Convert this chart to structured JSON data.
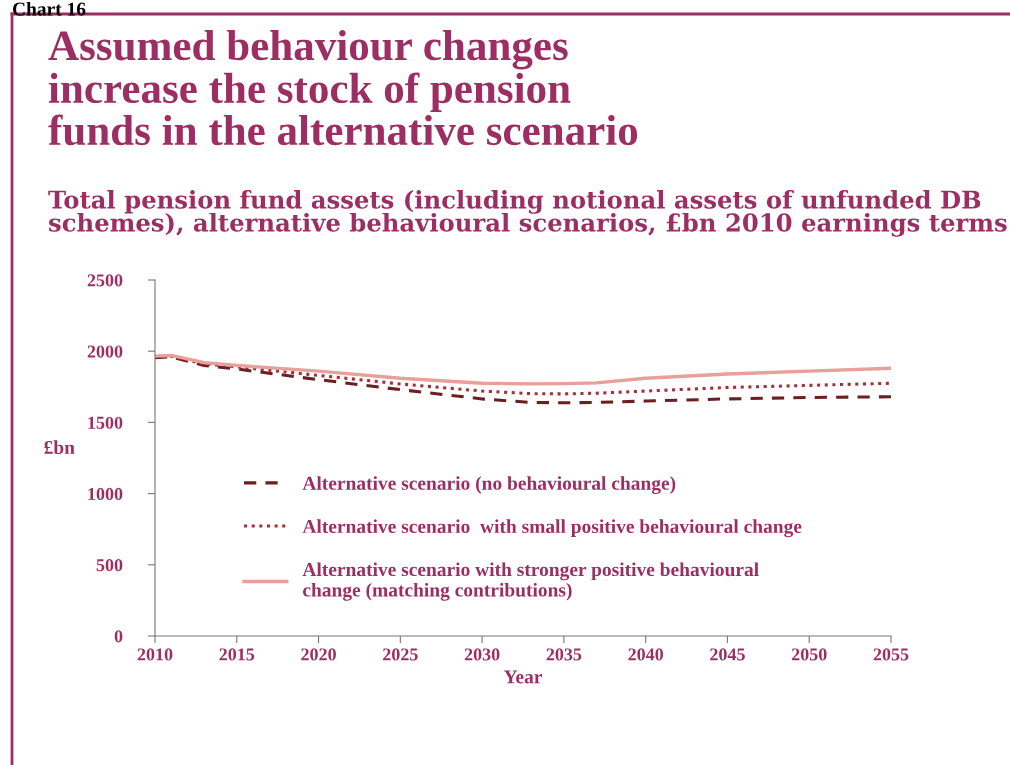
{
  "chart_data": {
    "type": "line",
    "title": "Assumed behaviour changes\nincrease the stock of pension\nfunds in the alternative scenario",
    "subtitle": "Total pension fund assets (including notional assets of unfunded DB\nschemes), alternative behavioural scenarios, £bn 2010 earnings terms",
    "annotations": [
      "Chart 16"
    ],
    "xlabel": "Year",
    "ylabel": "£bn",
    "x": [
      2010,
      2011,
      2013,
      2015,
      2020,
      2025,
      2030,
      2033,
      2035,
      2037,
      2040,
      2045,
      2050,
      2055
    ],
    "series": [
      {
        "name": "Alternative scenario (no behavioural change)",
        "color": "#6b1f1f",
        "line_style": "dashed",
        "values": [
          1955,
          1960,
          1900,
          1875,
          1800,
          1730,
          1665,
          1640,
          1638,
          1640,
          1650,
          1665,
          1675,
          1680
        ]
      },
      {
        "name": "Alternative scenario  with small positive behavioural change",
        "color": "#a0303a",
        "line_style": "dotted",
        "values": [
          1960,
          1965,
          1910,
          1890,
          1830,
          1770,
          1720,
          1702,
          1700,
          1705,
          1720,
          1745,
          1760,
          1775
        ]
      },
      {
        "name": "Alternative scenario with stronger positive behavioural\nchange (matching contributions)",
        "color": "#e8a09a",
        "line_style": "solid",
        "values": [
          1965,
          1970,
          1920,
          1900,
          1860,
          1810,
          1775,
          1770,
          1772,
          1778,
          1810,
          1840,
          1860,
          1880
        ]
      }
    ],
    "xlim": [
      2010,
      2055
    ],
    "xticks": [
      2010,
      2015,
      2020,
      2025,
      2030,
      2035,
      2040,
      2045,
      2050,
      2055
    ],
    "ylim": [
      0,
      2500
    ],
    "yticks": [
      0,
      500,
      1000,
      1500,
      2000,
      2500
    ],
    "grid": false,
    "legend": "lower center",
    "marker": "none"
  }
}
